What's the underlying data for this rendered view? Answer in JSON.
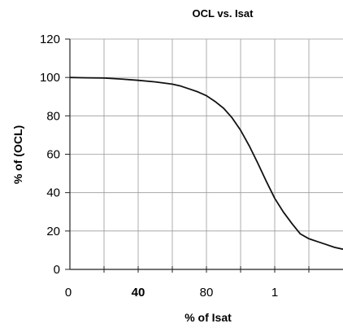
{
  "chart_data": {
    "type": "line",
    "title": "OCL vs. Isat",
    "xlabel": "% of Isat",
    "ylabel": "% of (OCL)",
    "x_tick_labels": [
      "0",
      "40",
      "80",
      "1"
    ],
    "y_ticks": [
      0,
      20,
      40,
      60,
      80,
      100,
      120
    ],
    "xlim": [
      0,
      160
    ],
    "ylim": [
      0,
      120
    ],
    "grid": true,
    "series": [
      {
        "x": [
          0,
          10,
          20,
          30,
          40,
          50,
          60,
          65,
          70,
          75,
          80,
          85,
          90,
          95,
          100,
          105,
          110,
          115,
          120,
          125,
          130,
          135,
          140,
          145,
          150,
          155,
          160
        ],
        "y": [
          100,
          99.8,
          99.7,
          99.2,
          98.5,
          97.7,
          96.5,
          95.5,
          94,
          92.5,
          90.5,
          87.5,
          84,
          79,
          72.5,
          64.5,
          55.5,
          46,
          37,
          30,
          24,
          18.5,
          16,
          14.5,
          13,
          11.5,
          10.5
        ]
      }
    ]
  }
}
